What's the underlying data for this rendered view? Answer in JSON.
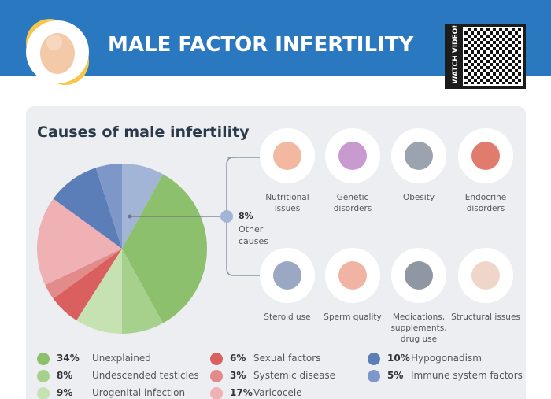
{
  "header": {
    "title": "MALE FACTOR INFERTILITY",
    "video_label": "WATCH VIDEO!"
  },
  "chart_data": {
    "type": "pie",
    "title": "Causes of male infertility",
    "categories": [
      "Other causes",
      "Unexplained",
      "Undescended testicles",
      "Urogenital infection",
      "Sexual factors",
      "Systemic disease",
      "Varicocele",
      "Hypogonadism",
      "Immune system factors"
    ],
    "values": [
      8,
      34,
      8,
      9,
      6,
      3,
      17,
      10,
      5
    ],
    "value_labels": [
      "8%",
      "34%",
      "8%",
      "9%",
      "6%",
      "3%",
      "17%",
      "10%",
      "5%"
    ],
    "colors": [
      "#a3b5d6",
      "#8dc06c",
      "#a6d18c",
      "#c6e2b2",
      "#d9605e",
      "#e38b8b",
      "#efb1b3",
      "#5b7db8",
      "#7d98c8"
    ]
  },
  "other_causes": [
    "Nutritional issues",
    "Genetic disorders",
    "Obesity",
    "Endocrine disorders",
    "Steroid use",
    "Sperm quality",
    "Medications, supplements, drug use",
    "Structural issues"
  ]
}
